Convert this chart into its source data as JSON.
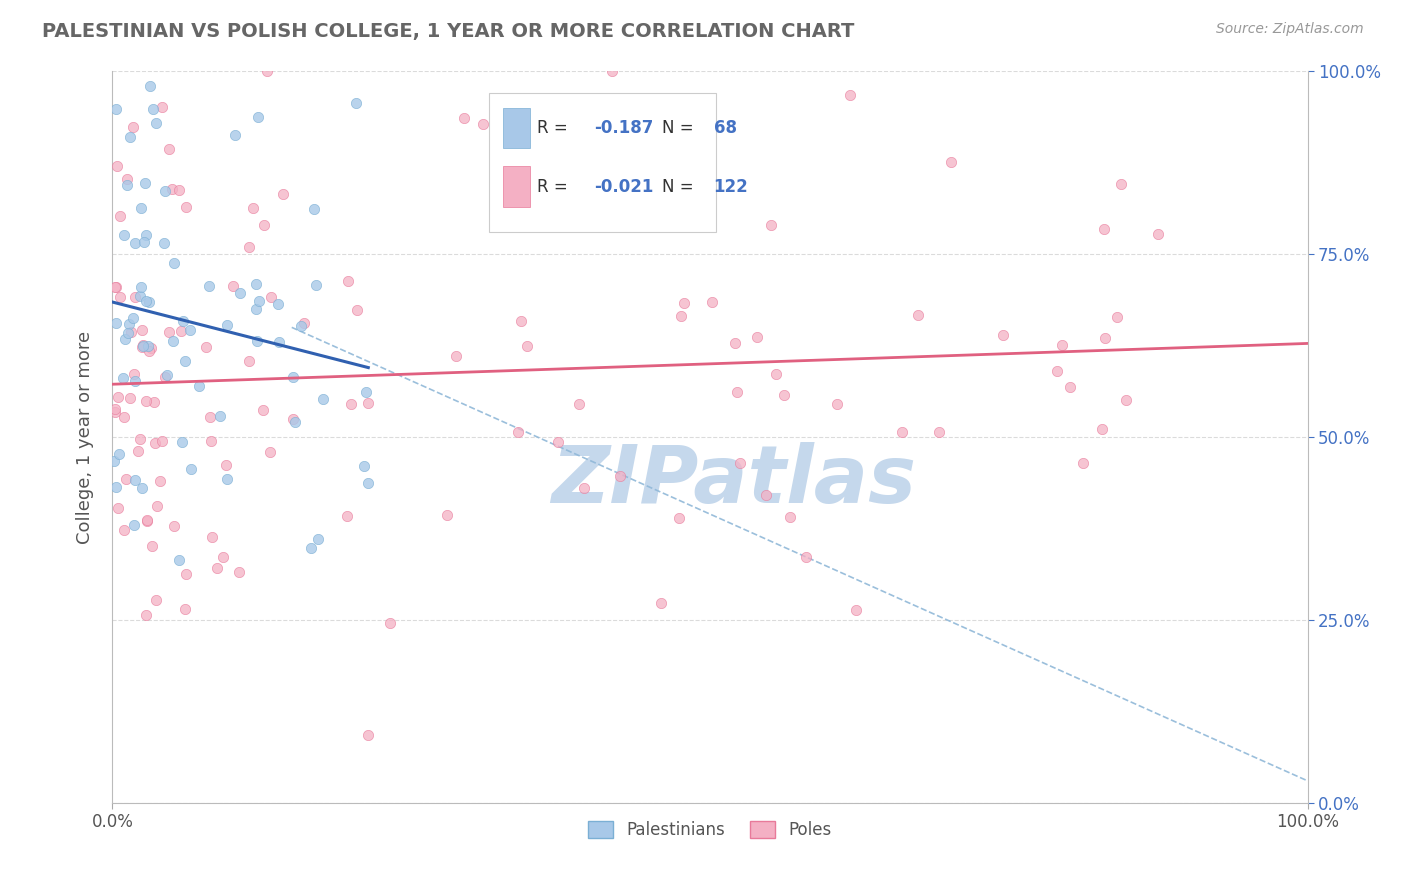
{
  "title": "PALESTINIAN VS POLISH COLLEGE, 1 YEAR OR MORE CORRELATION CHART",
  "source_text": "Source: ZipAtlas.com",
  "ylabel": "College, 1 year or more",
  "xlim": [
    0.0,
    1.0
  ],
  "ylim": [
    0.0,
    1.0
  ],
  "y_tick_labels_right": [
    "0.0%",
    "25.0%",
    "50.0%",
    "75.0%",
    "100.0%"
  ],
  "palestinians_color": "#a8c8e8",
  "poles_color": "#f4b0c4",
  "palestinians_edge": "#7bafd4",
  "poles_edge": "#e87a9a",
  "r_palestinians": -0.187,
  "n_palestinians": 68,
  "r_poles": -0.021,
  "n_poles": 122,
  "blue_line_color": "#3060b0",
  "pink_line_color": "#e06080",
  "dashed_line_color": "#90b8d8",
  "legend_r_color": "#4472c4",
  "grid_color": "#d8d8d8",
  "background_color": "#ffffff",
  "watermark_color": "#c5d8ec"
}
